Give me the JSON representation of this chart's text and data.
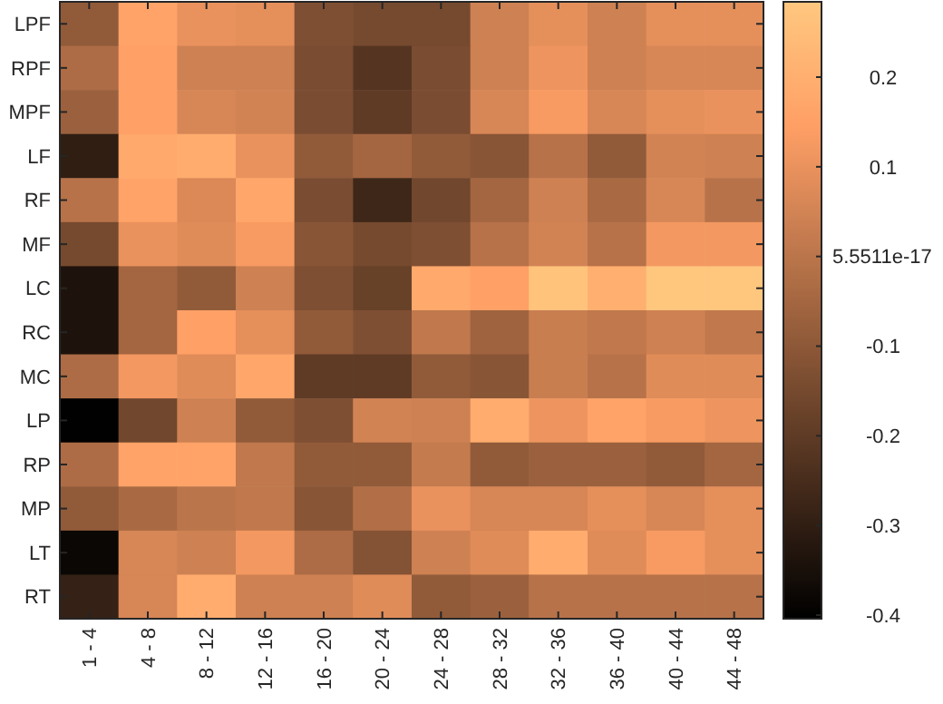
{
  "chart_data": {
    "type": "heatmap",
    "categories": [
      "1 - 4",
      "4 - 8",
      "8 - 12",
      "12 - 16",
      "16 - 20",
      "20 - 24",
      "24 - 28",
      "28 - 32",
      "32 - 36",
      "36 - 40",
      "40 - 44",
      "44 - 48"
    ],
    "y_categories": [
      "LPF",
      "RPF",
      "MPF",
      "LF",
      "RF",
      "MF",
      "LC",
      "RC",
      "MC",
      "LP",
      "RP",
      "MP",
      "LT",
      "RT"
    ],
    "cells": [
      [
        -0.09,
        0.16,
        0.1,
        0.09,
        -0.13,
        -0.15,
        -0.15,
        0.04,
        0.09,
        0.04,
        0.09,
        0.09
      ],
      [
        -0.03,
        0.15,
        0.04,
        0.04,
        -0.14,
        -0.22,
        -0.14,
        0.04,
        0.11,
        0.04,
        0.06,
        0.06
      ],
      [
        -0.07,
        0.15,
        0.06,
        0.05,
        -0.14,
        -0.2,
        -0.14,
        0.06,
        0.13,
        0.06,
        0.09,
        0.1
      ],
      [
        -0.3,
        0.18,
        0.19,
        0.1,
        -0.09,
        -0.05,
        -0.09,
        -0.11,
        -0.01,
        -0.09,
        0.05,
        0.04
      ],
      [
        -0.01,
        0.16,
        0.07,
        0.17,
        -0.14,
        -0.27,
        -0.16,
        -0.05,
        0.04,
        -0.04,
        0.06,
        -0.01
      ],
      [
        -0.15,
        0.1,
        0.08,
        0.13,
        -0.11,
        -0.15,
        -0.13,
        -0.01,
        0.05,
        -0.01,
        0.12,
        0.12
      ],
      [
        -0.34,
        -0.05,
        -0.09,
        0.04,
        -0.13,
        -0.18,
        0.18,
        0.15,
        0.27,
        0.2,
        0.28,
        0.28
      ],
      [
        -0.34,
        -0.05,
        0.15,
        0.09,
        -0.09,
        -0.13,
        0.01,
        -0.06,
        0.03,
        0.01,
        0.04,
        0.01
      ],
      [
        -0.03,
        0.12,
        0.08,
        0.17,
        -0.2,
        -0.2,
        -0.09,
        -0.11,
        0.03,
        -0.01,
        0.08,
        0.08
      ],
      [
        -0.4,
        -0.16,
        0.04,
        -0.09,
        -0.13,
        0.05,
        0.04,
        0.19,
        0.11,
        0.16,
        0.13,
        0.11
      ],
      [
        -0.03,
        0.16,
        0.16,
        0.01,
        -0.09,
        -0.09,
        0.02,
        -0.09,
        -0.07,
        -0.07,
        -0.09,
        -0.05
      ],
      [
        -0.09,
        -0.04,
        0.0,
        0.01,
        -0.11,
        -0.02,
        0.1,
        0.06,
        0.06,
        0.09,
        0.06,
        0.09
      ],
      [
        -0.38,
        0.06,
        0.04,
        0.12,
        -0.03,
        -0.12,
        0.04,
        0.08,
        0.19,
        0.08,
        0.13,
        0.09
      ],
      [
        -0.29,
        0.06,
        0.19,
        0.04,
        0.04,
        0.08,
        -0.09,
        -0.07,
        -0.01,
        -0.01,
        -0.01,
        -0.01
      ]
    ],
    "clim": [
      -0.404,
      0.284
    ],
    "cticks": [
      -0.4,
      -0.3,
      -0.2,
      -0.1,
      5.5511e-17,
      0.1,
      0.2
    ]
  }
}
